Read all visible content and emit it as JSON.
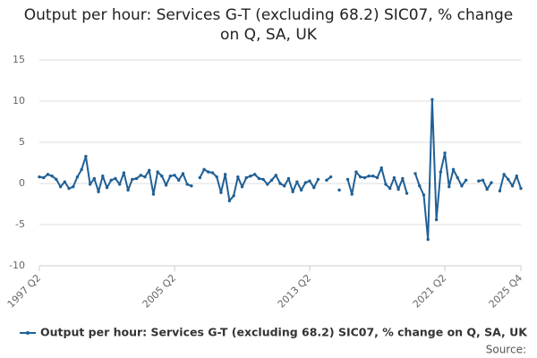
{
  "chart_data": {
    "type": "line",
    "title": "Output per hour: Services G-T (excluding 68.2) SIC07, % change on Q, SA, UK",
    "categories": [
      "1997 Q2",
      null,
      null,
      null,
      null,
      null,
      null,
      null,
      null,
      null,
      null,
      null,
      null,
      null,
      null,
      null,
      null,
      null,
      null,
      null,
      null,
      null,
      null,
      null,
      null,
      null,
      null,
      null,
      null,
      null,
      null,
      null,
      "2005 Q2",
      null,
      null,
      null,
      null,
      null,
      null,
      null,
      null,
      null,
      null,
      null,
      null,
      null,
      null,
      null,
      null,
      null,
      null,
      null,
      null,
      null,
      null,
      null,
      null,
      null,
      null,
      null,
      null,
      null,
      null,
      null,
      "2013 Q2",
      null,
      null,
      null,
      null,
      null,
      null,
      null,
      null,
      null,
      null,
      null,
      null,
      null,
      null,
      null,
      null,
      null,
      null,
      null,
      null,
      null,
      null,
      null,
      null,
      null,
      null,
      null,
      null,
      null,
      null,
      null,
      "2021 Q2",
      null,
      null,
      null,
      null,
      null,
      null,
      null,
      null,
      null,
      null,
      null,
      null,
      null,
      null,
      null,
      null,
      null,
      "2025 Q4"
    ],
    "series": [
      {
        "name": "Output per hour: Services G-T (excluding 68.2) SIC07, % change on Q, SA, UK",
        "color": "#206095",
        "values": [
          0.8,
          0.7,
          1.1,
          0.9,
          0.5,
          -0.4,
          0.2,
          -0.6,
          -0.4,
          0.8,
          1.7,
          3.3,
          -0.1,
          0.6,
          -1.0,
          0.9,
          -0.5,
          0.4,
          0.6,
          -0.1,
          1.3,
          -0.8,
          0.5,
          0.6,
          1.0,
          0.8,
          1.6,
          -1.3,
          1.4,
          0.9,
          -0.2,
          0.9,
          1.0,
          0.4,
          1.2,
          -0.1,
          -0.3,
          null,
          0.7,
          1.7,
          1.4,
          1.3,
          0.8,
          -1.1,
          1.1,
          -2.1,
          -1.5,
          0.8,
          -0.4,
          0.7,
          0.9,
          1.1,
          0.6,
          0.5,
          -0.1,
          0.4,
          1.0,
          0.0,
          -0.3,
          0.6,
          -1.0,
          0.2,
          -0.8,
          0.1,
          0.3,
          -0.5,
          0.5,
          null,
          0.4,
          0.8,
          null,
          -0.8,
          null,
          0.5,
          -1.3,
          1.4,
          0.8,
          0.7,
          0.9,
          0.9,
          0.7,
          1.9,
          -0.1,
          -0.6,
          0.7,
          -0.7,
          0.6,
          -1.2,
          null,
          1.2,
          -0.3,
          -1.4,
          -6.8,
          10.2,
          -4.4,
          1.4,
          3.7,
          -0.4,
          1.7,
          0.7,
          -0.3,
          0.4,
          null,
          null,
          0.3,
          0.4,
          -0.7,
          0.1,
          null,
          -0.9,
          1.1,
          0.5,
          -0.3,
          0.9,
          -0.6
        ]
      }
    ],
    "ylim": [
      -10,
      15
    ],
    "yticks": [
      -10,
      -5,
      0,
      5,
      10,
      15
    ],
    "grid": true,
    "legend": "bottom",
    "source": "Source:"
  }
}
